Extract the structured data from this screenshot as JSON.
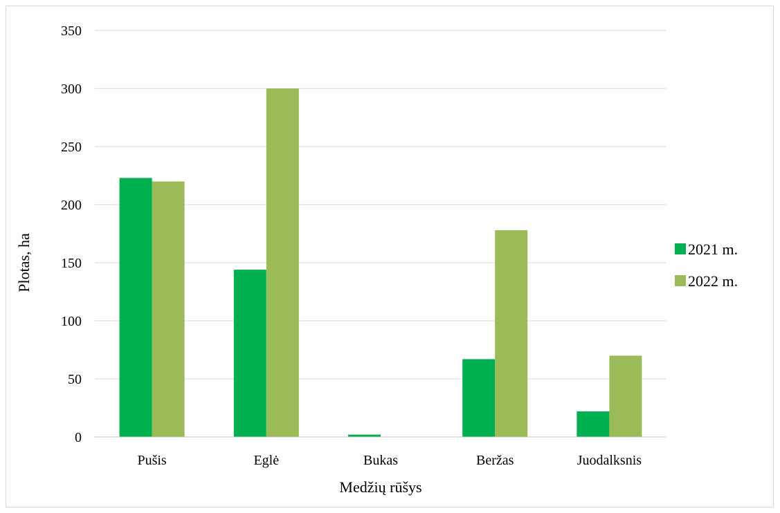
{
  "chart_data": {
    "type": "bar",
    "title": "",
    "xlabel": "Medžių rūšys",
    "ylabel": "Plotas, ha",
    "ylim": [
      0,
      350
    ],
    "yticks": [
      0,
      50,
      100,
      150,
      200,
      250,
      300,
      350
    ],
    "grid": true,
    "legend_position": "right",
    "categories": [
      "Pušis",
      "Eglė",
      "Bukas",
      "Beržas",
      "Juodalksnis"
    ],
    "series": [
      {
        "name": "2021 m.",
        "color": "#00b050",
        "values": [
          223,
          144,
          2,
          67,
          22
        ]
      },
      {
        "name": "2022 m.",
        "color": "#9bbb59",
        "values": [
          220,
          300,
          0,
          178,
          70
        ]
      }
    ]
  }
}
